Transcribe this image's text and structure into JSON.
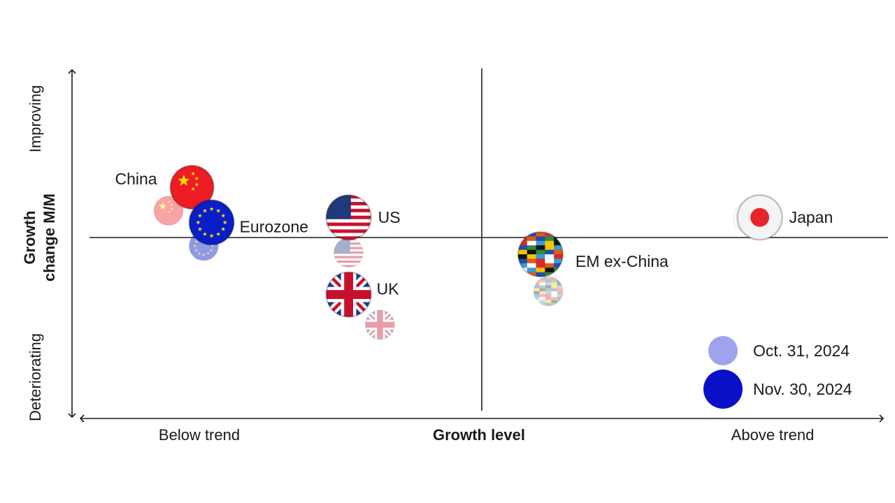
{
  "chart_data": {
    "type": "scatter",
    "title": "",
    "xlabel": "Growth level",
    "ylabel": "Growth change M/M",
    "x_axis": {
      "low_label": "Below trend",
      "high_label": "Above trend",
      "range": [
        -1,
        1
      ]
    },
    "y_axis": {
      "low_label": "Deteriorating",
      "high_label": "Improving",
      "range": [
        -1,
        1
      ]
    },
    "grid": false,
    "legend_position": "bottom-right",
    "series": [
      {
        "name": "Oct. 31, 2024",
        "color": "#9fa3ec",
        "points": [
          {
            "label": "China",
            "x": -0.8,
            "y": 0.16
          },
          {
            "label": "Eurozone",
            "x": -0.71,
            "y": -0.05
          },
          {
            "label": "US",
            "x": -0.34,
            "y": -0.09
          },
          {
            "label": "UK",
            "x": -0.26,
            "y": -0.52
          },
          {
            "label": "EM ex-China",
            "x": 0.17,
            "y": -0.32
          },
          {
            "label": "Japan",
            "x": 0.68,
            "y": 0.12
          }
        ]
      },
      {
        "name": "Nov. 30, 2024",
        "color": "#0a10c8",
        "points": [
          {
            "label": "China",
            "x": -0.74,
            "y": 0.3
          },
          {
            "label": "Eurozone",
            "x": -0.69,
            "y": 0.09
          },
          {
            "label": "US",
            "x": -0.34,
            "y": 0.12
          },
          {
            "label": "UK",
            "x": -0.34,
            "y": -0.34
          },
          {
            "label": "EM ex-China",
            "x": 0.15,
            "y": -0.1
          },
          {
            "label": "Japan",
            "x": 0.71,
            "y": 0.12
          }
        ]
      }
    ],
    "country_labels": [
      "China",
      "Eurozone",
      "US",
      "UK",
      "EM ex-China",
      "Japan"
    ],
    "flags": {
      "China": "china-flag",
      "Eurozone": "eu-flag",
      "US": "us-flag",
      "UK": "uk-flag",
      "EM ex-China": "em-flags-globe",
      "Japan": "japan-flag"
    }
  }
}
